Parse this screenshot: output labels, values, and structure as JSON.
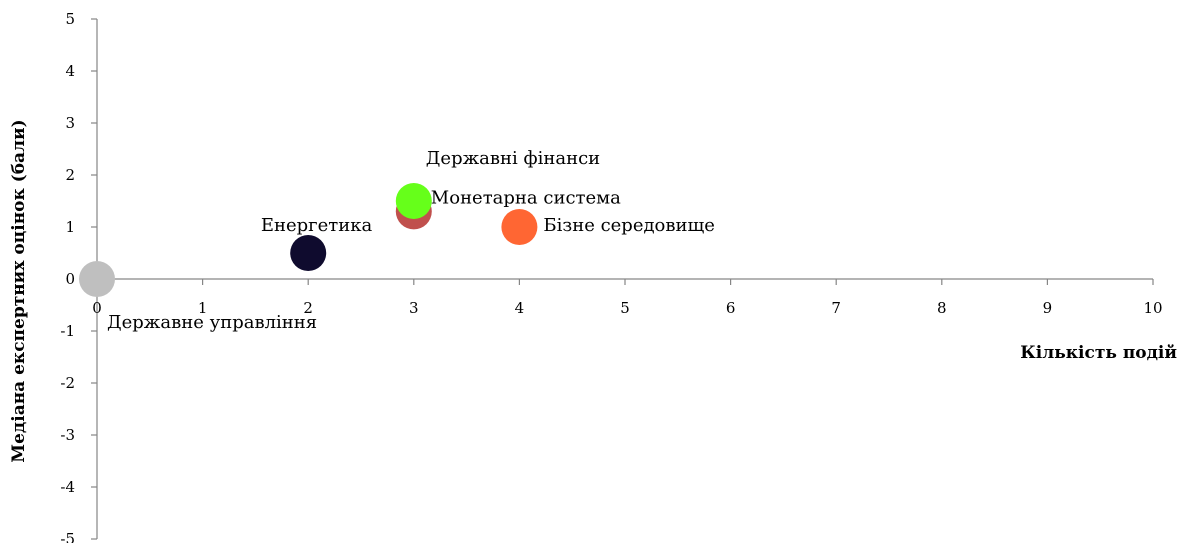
{
  "chart_data": {
    "type": "scatter",
    "xlabel": "Кількість подій",
    "ylabel": "Медіана експертних оцінок (бали)",
    "xlim": [
      0,
      10
    ],
    "ylim": [
      -5,
      5
    ],
    "x_ticks": [
      "0",
      "1",
      "2",
      "3",
      "4",
      "5",
      "6",
      "7",
      "8",
      "9",
      "10"
    ],
    "y_ticks": [
      "5",
      "4",
      "3",
      "2",
      "1",
      "0",
      "-1",
      "-2",
      "-3",
      "-4",
      "-5"
    ],
    "grid": false,
    "points": [
      {
        "label": "Державне управління",
        "x": 0,
        "y": 0,
        "color": "#bfbfbf"
      },
      {
        "label": "Енергетика",
        "x": 2,
        "y": 0.5,
        "color": "#0f0b2e"
      },
      {
        "label": "Монетарна система",
        "x": 3,
        "y": 1.3,
        "color": "#c0504d"
      },
      {
        "label": "Державні фінанси",
        "x": 3,
        "y": 1.5,
        "color": "#66ff1a"
      },
      {
        "label": "Бізне середовище",
        "x": 4,
        "y": 1,
        "color": "#ff6633"
      }
    ]
  }
}
